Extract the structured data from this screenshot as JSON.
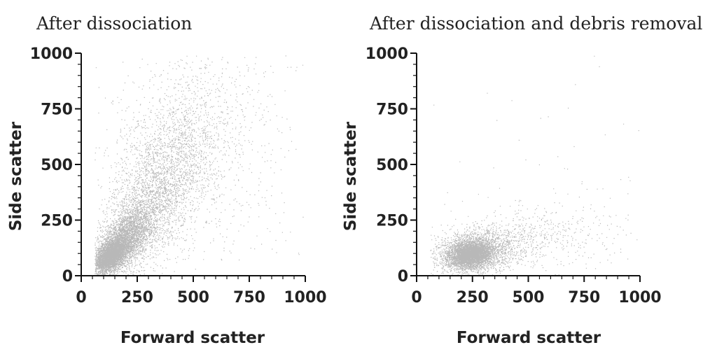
{
  "chart_data": [
    {
      "type": "scatter",
      "title": "After dissociation",
      "xlabel": "Forward scatter",
      "ylabel": "Side scatter",
      "xlim": [
        0,
        1000
      ],
      "ylim": [
        0,
        1000
      ],
      "xticks": [
        "0",
        "250",
        "500",
        "750",
        "1000"
      ],
      "yticks": [
        "0",
        "250",
        "500",
        "750",
        "1000"
      ],
      "series": [
        {
          "clusters": [
            {
              "cx": 130,
              "cy": 90,
              "sx": 35,
              "sy": 35,
              "rho": 0.5,
              "n": 3500
            },
            {
              "cx": 190,
              "cy": 160,
              "sx": 65,
              "sy": 75,
              "rho": 0.6,
              "n": 3000
            },
            {
              "cx": 320,
              "cy": 340,
              "sx": 120,
              "sy": 170,
              "rho": 0.6,
              "n": 2500
            },
            {
              "cx": 450,
              "cy": 600,
              "sx": 160,
              "sy": 220,
              "rho": 0.3,
              "n": 1400
            },
            {
              "cx": 600,
              "cy": 500,
              "sx": 260,
              "sy": 300,
              "rho": 0.0,
              "n": 400
            }
          ]
        }
      ]
    },
    {
      "type": "scatter",
      "title": "After dissociation and debris removal",
      "xlabel": "Forward scatter",
      "ylabel": "Side scatter",
      "xlim": [
        0,
        1000
      ],
      "ylim": [
        0,
        1000
      ],
      "xticks": [
        "0",
        "250",
        "500",
        "750",
        "1000"
      ],
      "yticks": [
        "0",
        "250",
        "500",
        "750",
        "1000"
      ],
      "series": [
        {
          "clusters": [
            {
              "cx": 240,
              "cy": 95,
              "sx": 45,
              "sy": 28,
              "rho": 0.2,
              "n": 3500
            },
            {
              "cx": 260,
              "cy": 110,
              "sx": 90,
              "sy": 50,
              "rho": 0.2,
              "n": 2000
            },
            {
              "cx": 420,
              "cy": 150,
              "sx": 170,
              "sy": 70,
              "rho": 0.3,
              "n": 600
            },
            {
              "cx": 700,
              "cy": 220,
              "sx": 180,
              "sy": 120,
              "rho": 0.0,
              "n": 150
            },
            {
              "cx": 600,
              "cy": 500,
              "sx": 300,
              "sy": 300,
              "rho": 0.0,
              "n": 40
            }
          ]
        }
      ]
    }
  ]
}
